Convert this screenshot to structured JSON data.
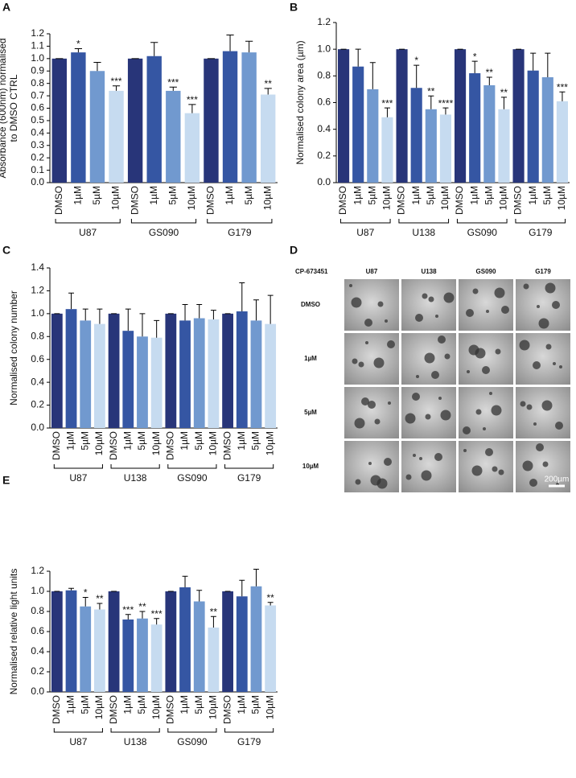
{
  "chart_data": [
    {
      "type": "bar",
      "panel": "A",
      "ylabel": [
        "Absorbance (600nm) normalised",
        "to DMSO CTRL"
      ],
      "ylim": [
        0,
        1.2
      ],
      "yticks": [
        {
          "value": 0,
          "label": "0.0"
        },
        0.1,
        0.2,
        0.3,
        0.4,
        0.5,
        0.6,
        0.7,
        0.8,
        0.9,
        {
          "value": 1,
          "label": "1.0"
        },
        1.1,
        1.2
      ],
      "colors": [
        "#283579",
        "#3556a3",
        "#7199cf",
        "#c6dbf0"
      ],
      "groups": [
        {
          "name": "U87",
          "categories": [
            "DMSO",
            "1µM",
            "5µM",
            "10µM"
          ],
          "values": [
            1.0,
            1.05,
            0.9,
            0.74
          ],
          "errors": [
            0,
            0.03,
            0.07,
            0.04
          ],
          "stars": [
            null,
            "*",
            null,
            "***"
          ]
        },
        {
          "name": "GS090",
          "categories": [
            "DMSO",
            "1µM",
            "5µM",
            "10µM"
          ],
          "values": [
            1.0,
            1.02,
            0.74,
            0.56
          ],
          "errors": [
            0,
            0.11,
            0.03,
            0.07
          ],
          "stars": [
            null,
            null,
            "***",
            "***"
          ]
        },
        {
          "name": "G179",
          "categories": [
            "DMSO",
            "1µM",
            "5µM",
            "10µM"
          ],
          "values": [
            1.0,
            1.06,
            1.05,
            0.71
          ],
          "errors": [
            0,
            0.13,
            0.09,
            0.05
          ],
          "stars": [
            null,
            null,
            null,
            "**"
          ]
        }
      ]
    },
    {
      "type": "bar",
      "panel": "B",
      "ylabel": [
        "Normalised colony area (µm)"
      ],
      "ylim": [
        0,
        1.2
      ],
      "yticks": [
        {
          "value": 0,
          "label": "0.0"
        },
        0.2,
        0.4,
        0.6,
        0.8,
        {
          "value": 1,
          "label": "1.0"
        },
        1.2
      ],
      "colors": [
        "#283579",
        "#3556a3",
        "#7199cf",
        "#c6dbf0"
      ],
      "groups": [
        {
          "name": "U87",
          "categories": [
            "DMSO",
            "1µM",
            "5µM",
            "10µM"
          ],
          "values": [
            1.0,
            0.87,
            0.7,
            0.49
          ],
          "errors": [
            0,
            0.13,
            0.2,
            0.07
          ],
          "stars": [
            null,
            null,
            null,
            "***"
          ]
        },
        {
          "name": "U138",
          "categories": [
            "DMSO",
            "1µM",
            "5µM",
            "10µM"
          ],
          "values": [
            1.0,
            0.71,
            0.55,
            0.51
          ],
          "errors": [
            0,
            0.17,
            0.1,
            0.05
          ],
          "stars": [
            null,
            "*",
            "**",
            "****"
          ]
        },
        {
          "name": "GS090",
          "categories": [
            "DMSO",
            "1µM",
            "5µM",
            "10µM"
          ],
          "values": [
            1.0,
            0.82,
            0.73,
            0.55
          ],
          "errors": [
            0,
            0.09,
            0.06,
            0.09
          ],
          "stars": [
            null,
            "*",
            "**",
            "**"
          ]
        },
        {
          "name": "G179",
          "categories": [
            "DMSO",
            "1µM",
            "5µM",
            "10µM"
          ],
          "values": [
            1.0,
            0.84,
            0.79,
            0.61
          ],
          "errors": [
            0,
            0.13,
            0.18,
            0.07
          ],
          "stars": [
            null,
            null,
            null,
            "***"
          ]
        }
      ]
    },
    {
      "type": "bar",
      "panel": "C",
      "ylabel": [
        "Normalised colony number"
      ],
      "ylim": [
        0,
        1.4
      ],
      "yticks": [
        {
          "value": 0,
          "label": "0.0"
        },
        0.2,
        0.4,
        0.6,
        0.8,
        {
          "value": 1,
          "label": "1.0"
        },
        1.2,
        1.4
      ],
      "colors": [
        "#283579",
        "#3556a3",
        "#7199cf",
        "#c6dbf0"
      ],
      "groups": [
        {
          "name": "U87",
          "categories": [
            "DMSO",
            "1µM",
            "5µM",
            "10µM"
          ],
          "values": [
            1.0,
            1.04,
            0.94,
            0.91
          ],
          "errors": [
            0,
            0.14,
            0.1,
            0.13
          ],
          "stars": [
            null,
            null,
            null,
            null
          ]
        },
        {
          "name": "U138",
          "categories": [
            "DMSO",
            "1µM",
            "5µM",
            "10µM"
          ],
          "values": [
            1.0,
            0.85,
            0.8,
            0.79
          ],
          "errors": [
            0,
            0.19,
            0.2,
            0.15
          ],
          "stars": [
            null,
            null,
            null,
            null
          ]
        },
        {
          "name": "GS090",
          "categories": [
            "DMSO",
            "1µM",
            "5µM",
            "10µM"
          ],
          "values": [
            1.0,
            0.94,
            0.96,
            0.95
          ],
          "errors": [
            0,
            0.14,
            0.12,
            0.08
          ],
          "stars": [
            null,
            null,
            null,
            null
          ]
        },
        {
          "name": "G179",
          "categories": [
            "DMSO",
            "1µM",
            "5µM",
            "10µM"
          ],
          "values": [
            1.0,
            1.02,
            0.94,
            0.91
          ],
          "errors": [
            0,
            0.25,
            0.18,
            0.25
          ],
          "stars": [
            null,
            null,
            null,
            null
          ]
        }
      ]
    },
    {
      "type": "bar",
      "panel": "E",
      "ylabel": [
        "Normalised relative light units"
      ],
      "ylim": [
        0,
        1.2
      ],
      "yticks": [
        {
          "value": 0,
          "label": "0.0"
        },
        0.2,
        0.4,
        0.6,
        0.8,
        {
          "value": 1,
          "label": "1.0"
        },
        1.2
      ],
      "colors": [
        "#283579",
        "#3556a3",
        "#7199cf",
        "#c6dbf0"
      ],
      "groups": [
        {
          "name": "U87",
          "categories": [
            "DMSO",
            "1µM",
            "5µM",
            "10µM"
          ],
          "values": [
            1.0,
            1.01,
            0.85,
            0.82
          ],
          "errors": [
            0,
            0.02,
            0.09,
            0.06
          ],
          "stars": [
            null,
            null,
            "*",
            "**"
          ]
        },
        {
          "name": "U138",
          "categories": [
            "DMSO",
            "1µM",
            "5µM",
            "10µM"
          ],
          "values": [
            1.0,
            0.72,
            0.73,
            0.67
          ],
          "errors": [
            0,
            0.05,
            0.07,
            0.06
          ],
          "stars": [
            null,
            "***",
            "**",
            "***"
          ]
        },
        {
          "name": "GS090",
          "categories": [
            "DMSO",
            "1µM",
            "5µM",
            "10µM"
          ],
          "values": [
            1.0,
            1.04,
            0.9,
            0.64
          ],
          "errors": [
            0,
            0.11,
            0.11,
            0.11
          ],
          "stars": [
            null,
            null,
            null,
            "**"
          ]
        },
        {
          "name": "G179",
          "categories": [
            "DMSO",
            "1µM",
            "5µM",
            "10µM"
          ],
          "values": [
            1.0,
            0.95,
            1.05,
            0.86
          ],
          "errors": [
            0,
            0.16,
            0.17,
            0.03
          ],
          "stars": [
            null,
            null,
            null,
            "**"
          ]
        }
      ]
    }
  ],
  "image_panel": {
    "panel": "D",
    "treatment": "CP-673451",
    "columns": [
      "U87",
      "U138",
      "GS090",
      "G179"
    ],
    "rows": [
      "DMSO",
      "1µM",
      "5µM",
      "10µM"
    ],
    "scale_bar": "200µm"
  }
}
